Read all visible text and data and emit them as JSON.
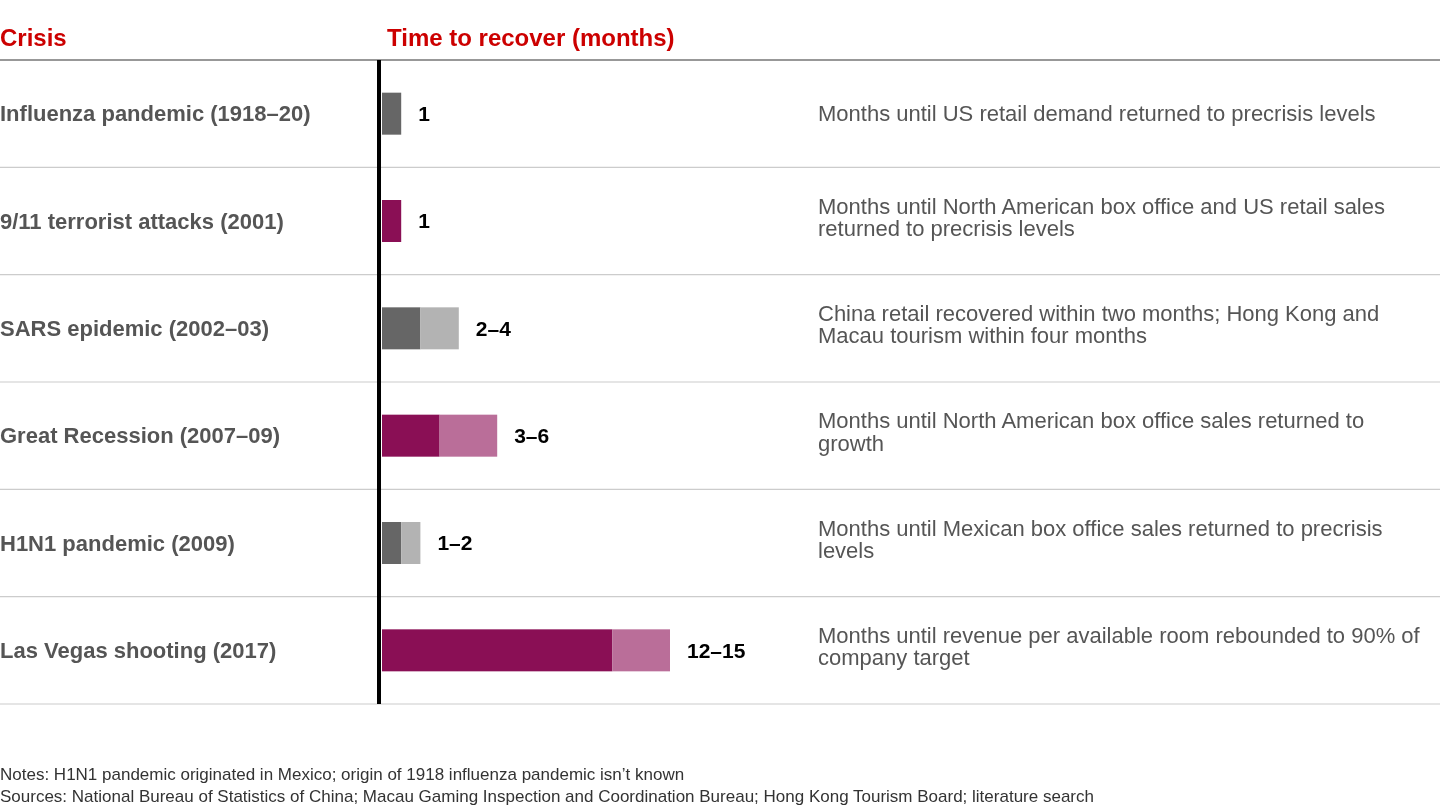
{
  "chart_data": {
    "type": "bar",
    "orientation": "horizontal",
    "stacked": true,
    "ylabel": "Crisis",
    "xlabel": "Time to recover (months)",
    "categories": [
      "Influenza pandemic (1918–20)",
      "9/11 terrorist attacks (2001)",
      "SARS epidemic (2002–03)",
      "Great Recession (2007–09)",
      "H1N1 pandemic (2009)",
      "Las Vegas shooting (2017)"
    ],
    "series": [
      {
        "colors": [
          "#666666",
          "#8a0f55",
          "#666666",
          "#8a0f55",
          "#666666",
          "#8a0f55"
        ],
        "values": [
          1,
          1,
          2,
          3,
          1,
          12
        ],
        "value_labels": [
          "1",
          "1",
          null,
          null,
          null,
          null
        ]
      },
      {
        "colors": [
          null,
          null,
          "#b3b3b3",
          "#ba6e99",
          "#b3b3b3",
          "#ba6e99"
        ],
        "values": [
          null,
          null,
          2,
          3,
          1,
          3
        ],
        "value_labels": [
          null,
          null,
          "2–4",
          "3–6",
          "1–2",
          "12–15"
        ]
      }
    ],
    "annotations": [
      "Months until US retail demand returned to precrisis levels",
      "Months until North American box office and US retail sales returned to precrisis levels",
      "China retail recovered within two months; Hong Kong and Macau tourism within four months",
      "Months until North American box office sales returned to growth",
      "Months until Mexican box office sales returned to precrisis levels",
      "Months until revenue per available room rebounded to 90% of company target",
      "Notes: H1N1 pandemic originated in Mexico; origin of 1918 influenza pandemic isn’t known",
      "Sources: National Bureau of Statistics of China; Macau Gaming Inspection and Coordination Bureau; Hong Kong Tourism Board; literature search"
    ]
  }
}
